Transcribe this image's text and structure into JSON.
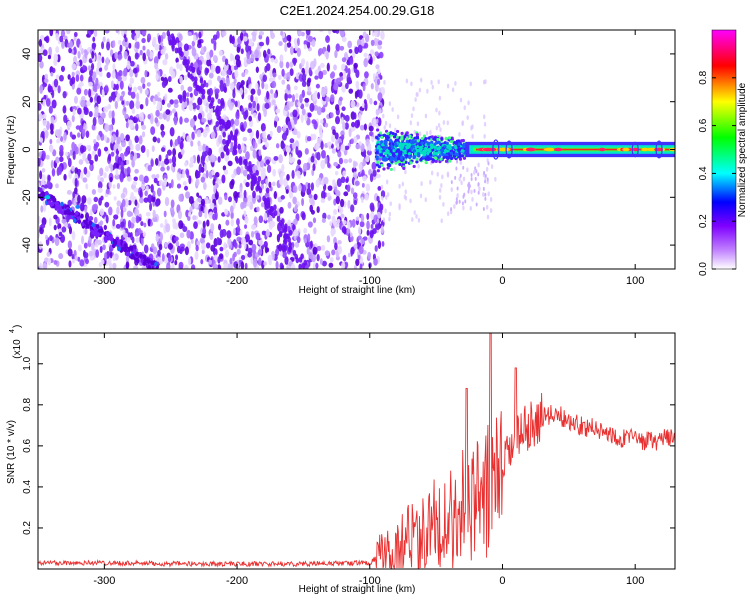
{
  "title": "C2E1.2024.254.00.29.G18",
  "chart_data": [
    {
      "type": "heatmap",
      "xlabel": "Height of straight line (km)",
      "ylabel": "Frequency (Hz)",
      "xlim": [
        -350,
        130
      ],
      "ylim": [
        -50,
        50
      ],
      "x_ticks": [
        -300,
        -200,
        -100,
        0,
        100
      ],
      "y_ticks": [
        -40,
        -20,
        0,
        20,
        40
      ],
      "colorbar": {
        "label": "Normalized spectral amplitude",
        "range": [
          0,
          1
        ],
        "ticks": [
          "0.0",
          "0.2",
          "0.4",
          "0.6",
          "0.8"
        ],
        "colors": [
          "#ffffff",
          "#7f00ff",
          "#0000ff",
          "#00ffff",
          "#00ff00",
          "#ffff00",
          "#ff0000",
          "#ff00ff"
        ]
      },
      "features": {
        "noise_region_x": [
          -350,
          -90
        ],
        "signal_start_x": -95,
        "signal_center_freq": 0,
        "diagonal_trace": {
          "x": [
            -350,
            -260
          ],
          "freq": [
            -18,
            -50
          ]
        },
        "faint_diagonal_trace": {
          "x": [
            -250,
            -150
          ],
          "freq": [
            48,
            -48
          ]
        }
      }
    },
    {
      "type": "line",
      "xlabel": "Height of straight line (km)",
      "ylabel": "SNR (10 * v/v)",
      "yscale_label": "(x10",
      "yscale_exp": "4",
      "xlim": [
        -350,
        130
      ],
      "ylim": [
        0,
        1.15
      ],
      "x_ticks": [
        -300,
        -200,
        -100,
        0,
        100
      ],
      "y_ticks": [
        "0.2",
        "0.4",
        "0.6",
        "0.8",
        "1.0"
      ],
      "line_color": "#e83030",
      "series": [
        {
          "x": [
            -350,
            -300,
            -250,
            -200,
            -150,
            -100,
            -90,
            -80,
            -70,
            -60,
            -50,
            -40,
            -30,
            -20,
            -10,
            0,
            10,
            20,
            30,
            40,
            50,
            60,
            70,
            80,
            90,
            100,
            110,
            120,
            130
          ],
          "y": [
            0.03,
            0.03,
            0.025,
            0.025,
            0.025,
            0.03,
            0.08,
            0.12,
            0.18,
            0.22,
            0.26,
            0.3,
            0.36,
            0.4,
            0.45,
            0.5,
            0.62,
            0.7,
            0.74,
            0.76,
            0.72,
            0.7,
            0.68,
            0.66,
            0.64,
            0.63,
            0.62,
            0.63,
            0.64
          ]
        }
      ]
    }
  ]
}
